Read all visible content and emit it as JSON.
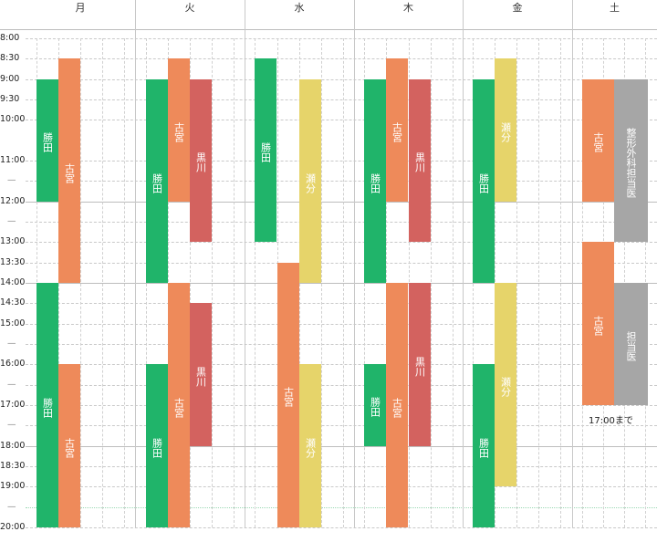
{
  "colors": {
    "勝田": "#20b46a",
    "古宮": "#ee8a5a",
    "黒川": "#d3625f",
    "瀬分": "#e6d46a",
    "担当医": "#a6a6a6"
  },
  "days": [
    "月",
    "火",
    "水",
    "木",
    "金",
    "土"
  ],
  "time_labels": [
    {
      "text": "8:00",
      "t": 8.0
    },
    {
      "text": "8:30",
      "t": 8.5
    },
    {
      "text": "9:00",
      "t": 9.0
    },
    {
      "text": "9:30",
      "t": 9.5
    },
    {
      "text": "10:00",
      "t": 10.0
    },
    {
      "text": "11:00",
      "t": 11.0
    },
    {
      "text": "—",
      "t": 11.5
    },
    {
      "text": "12:00",
      "t": 12.0
    },
    {
      "text": "—",
      "t": 12.5
    },
    {
      "text": "13:00",
      "t": 13.0
    },
    {
      "text": "13:30",
      "t": 13.5
    },
    {
      "text": "14:00",
      "t": 14.0
    },
    {
      "text": "14:30",
      "t": 14.5
    },
    {
      "text": "15:00",
      "t": 15.0
    },
    {
      "text": "—",
      "t": 15.5
    },
    {
      "text": "16:00",
      "t": 16.0
    },
    {
      "text": "—",
      "t": 16.5
    },
    {
      "text": "17:00",
      "t": 17.0
    },
    {
      "text": "—",
      "t": 17.5
    },
    {
      "text": "18:00",
      "t": 18.0
    },
    {
      "text": "18:30",
      "t": 18.5
    },
    {
      "text": "19:00",
      "t": 19.0
    },
    {
      "text": "—",
      "t": 19.5
    },
    {
      "text": "20:00",
      "t": 20.0
    }
  ],
  "shifts": [
    {
      "day": 0,
      "lane": 0,
      "start": 9.0,
      "end": 12.0,
      "label": "勝田",
      "color": "勝田"
    },
    {
      "day": 0,
      "lane": 1,
      "start": 8.5,
      "end": 14.0,
      "label": "古宮",
      "color": "古宮"
    },
    {
      "day": 0,
      "lane": 0,
      "start": 14.0,
      "end": 20.0,
      "label": "勝田",
      "color": "勝田"
    },
    {
      "day": 0,
      "lane": 1,
      "start": 16.0,
      "end": 20.0,
      "label": "古宮",
      "color": "古宮"
    },
    {
      "day": 1,
      "lane": 0,
      "start": 9.0,
      "end": 14.0,
      "label": "勝田",
      "color": "勝田"
    },
    {
      "day": 1,
      "lane": 1,
      "start": 8.5,
      "end": 12.0,
      "label": "古宮",
      "color": "古宮"
    },
    {
      "day": 1,
      "lane": 2,
      "start": 9.0,
      "end": 13.0,
      "label": "黒川",
      "color": "黒川"
    },
    {
      "day": 1,
      "lane": 0,
      "start": 16.0,
      "end": 20.0,
      "label": "勝田",
      "color": "勝田"
    },
    {
      "day": 1,
      "lane": 1,
      "start": 14.0,
      "end": 20.0,
      "label": "古宮",
      "color": "古宮"
    },
    {
      "day": 1,
      "lane": 2,
      "start": 14.5,
      "end": 18.0,
      "label": "黒川",
      "color": "黒川"
    },
    {
      "day": 2,
      "lane": 0,
      "start": 8.5,
      "end": 13.0,
      "label": "勝田",
      "color": "勝田"
    },
    {
      "day": 2,
      "lane": 2,
      "start": 9.0,
      "end": 14.0,
      "label": "瀬分",
      "color": "瀬分"
    },
    {
      "day": 2,
      "lane": 1,
      "start": 13.5,
      "end": 20.0,
      "label": "古宮",
      "color": "古宮"
    },
    {
      "day": 2,
      "lane": 2,
      "start": 16.0,
      "end": 20.0,
      "label": "瀬分",
      "color": "瀬分"
    },
    {
      "day": 3,
      "lane": 0,
      "start": 9.0,
      "end": 14.0,
      "label": "勝田",
      "color": "勝田"
    },
    {
      "day": 3,
      "lane": 1,
      "start": 8.5,
      "end": 12.0,
      "label": "古宮",
      "color": "古宮"
    },
    {
      "day": 3,
      "lane": 2,
      "start": 9.0,
      "end": 13.0,
      "label": "黒川",
      "color": "黒川"
    },
    {
      "day": 3,
      "lane": 0,
      "start": 16.0,
      "end": 18.0,
      "label": "勝田",
      "color": "勝田"
    },
    {
      "day": 3,
      "lane": 1,
      "start": 14.0,
      "end": 20.0,
      "label": "古宮",
      "color": "古宮"
    },
    {
      "day": 3,
      "lane": 2,
      "start": 14.0,
      "end": 18.0,
      "label": "黒川",
      "color": "黒川"
    },
    {
      "day": 4,
      "lane": 0,
      "start": 9.0,
      "end": 14.0,
      "label": "勝田",
      "color": "勝田"
    },
    {
      "day": 4,
      "lane": 1,
      "start": 8.5,
      "end": 12.0,
      "label": "瀬分",
      "color": "瀬分"
    },
    {
      "day": 4,
      "lane": 1,
      "start": 14.0,
      "end": 19.0,
      "label": "瀬分",
      "color": "瀬分"
    },
    {
      "day": 4,
      "lane": 0,
      "start": 16.0,
      "end": 20.0,
      "label": "勝田",
      "color": "勝田"
    },
    {
      "day": 5,
      "lane": 0,
      "start": 9.0,
      "end": 12.0,
      "label": "古宮",
      "color": "古宮"
    },
    {
      "day": 5,
      "lane": 1,
      "start": 9.0,
      "end": 13.0,
      "label": "整形外科担当医",
      "color": "担当医"
    },
    {
      "day": 5,
      "lane": 0,
      "start": 13.0,
      "end": 17.0,
      "label": "古宮",
      "color": "古宮"
    },
    {
      "day": 5,
      "lane": 1,
      "start": 14.0,
      "end": 17.0,
      "label": "担当医",
      "color": "担当医"
    }
  ],
  "saturday_note": "17:00まで"
}
